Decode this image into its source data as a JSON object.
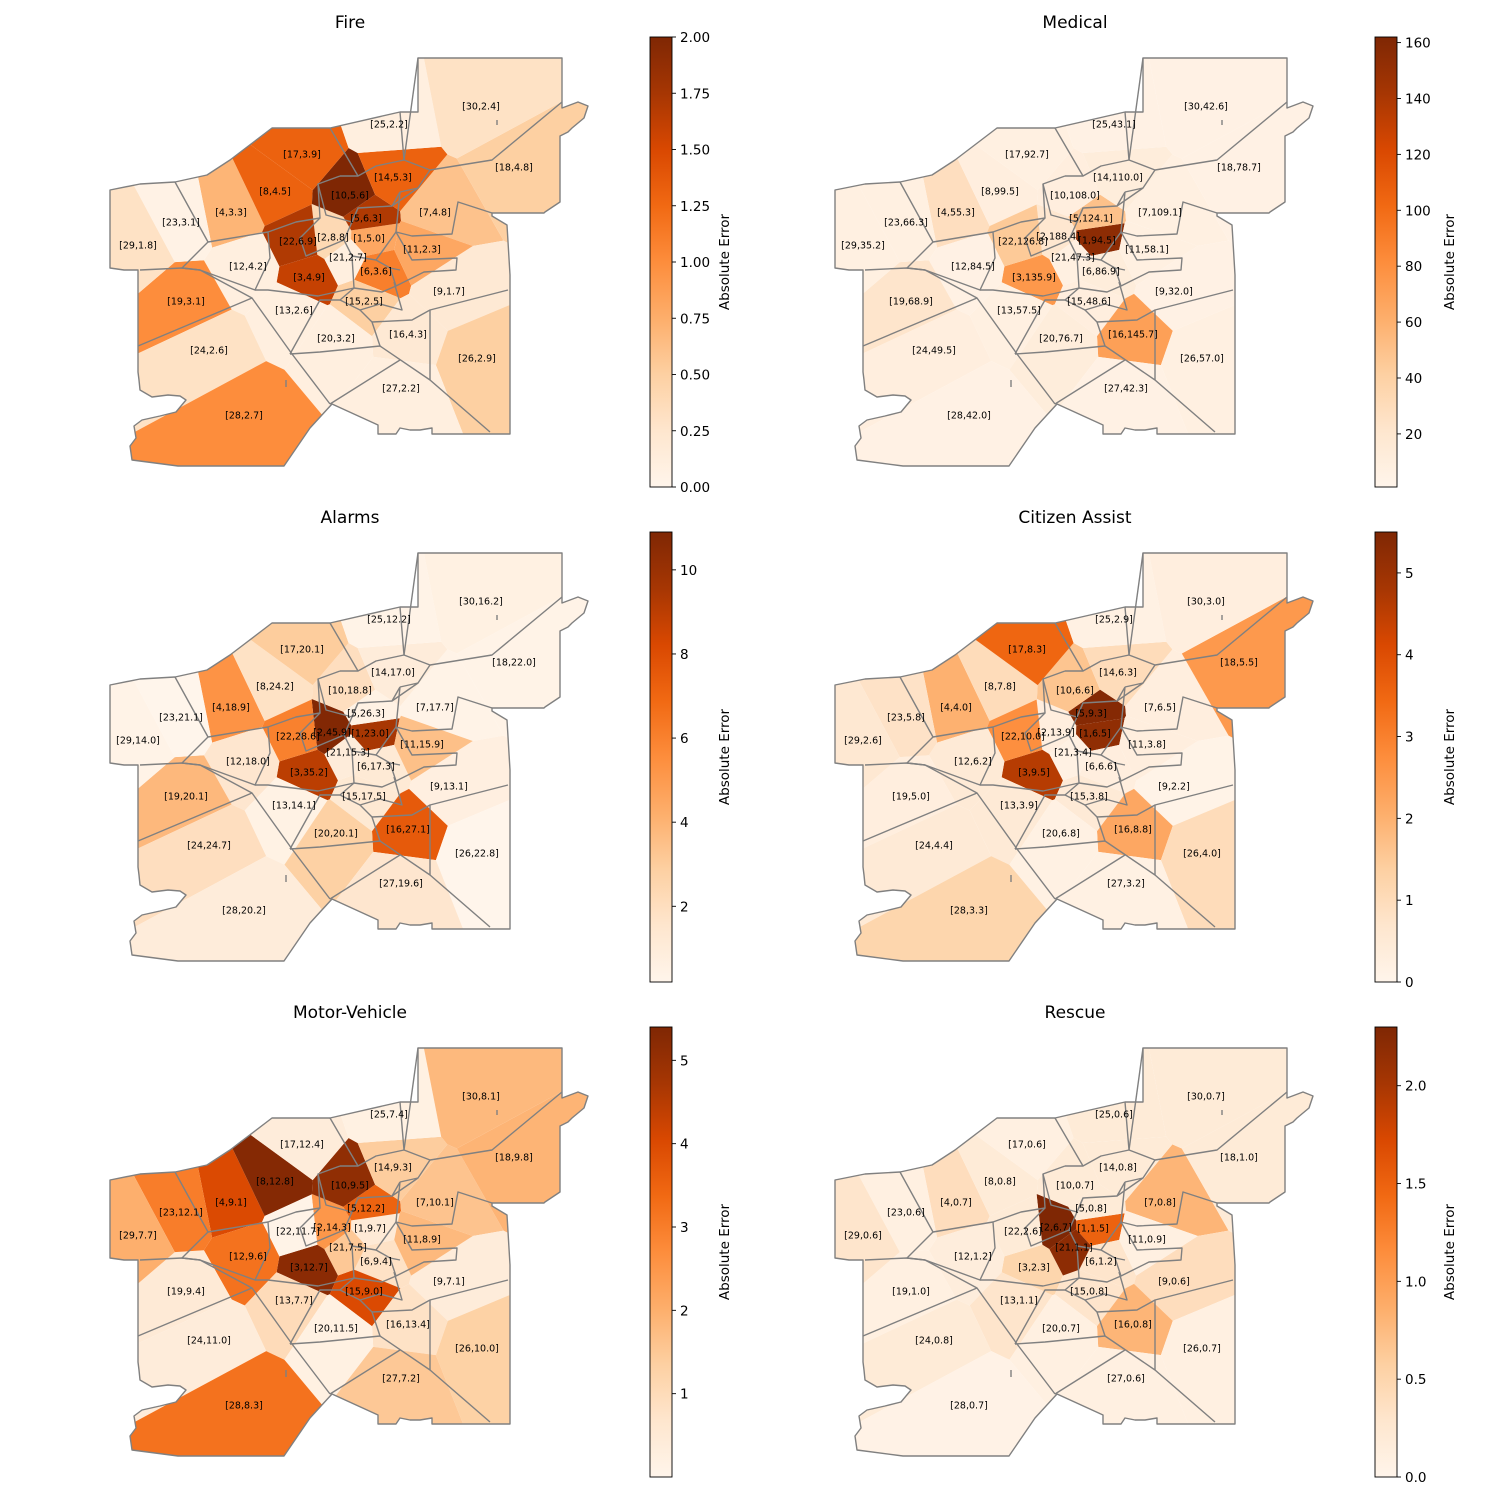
{
  "colormap": [
    "#fff5eb",
    "#fee6ce",
    "#fdd0a2",
    "#fdae6b",
    "#fd8d3c",
    "#f16913",
    "#d94801",
    "#a63603",
    "#7f2704"
  ],
  "edge_color": "#808080",
  "chart_data": [
    {
      "type": "choropleth-map",
      "title": "Fire",
      "colorbar_label": "Absolute Error",
      "vmin": 0,
      "vmax": 2.0,
      "ticks": [
        "0.00",
        "0.25",
        "0.50",
        "0.75",
        "1.00",
        "1.25",
        "1.50",
        "1.75",
        "2.00"
      ],
      "regions": [
        {
          "id": 1,
          "value": 5.0,
          "error": 0.8
        },
        {
          "id": 2,
          "value": 8.8,
          "error": 0.4
        },
        {
          "id": 3,
          "value": 4.9,
          "error": 1.6
        },
        {
          "id": 4,
          "value": 3.3,
          "error": 0.7
        },
        {
          "id": 5,
          "value": 6.3,
          "error": 1.7
        },
        {
          "id": 6,
          "value": 3.6,
          "error": 1.1
        },
        {
          "id": 7,
          "value": 4.8,
          "error": 0.6
        },
        {
          "id": 8,
          "value": 4.5,
          "error": 1.3
        },
        {
          "id": 9,
          "value": 1.7,
          "error": 0.2
        },
        {
          "id": 10,
          "value": 5.6,
          "error": 2.0
        },
        {
          "id": 11,
          "value": 2.3,
          "error": 0.8
        },
        {
          "id": 12,
          "value": 4.2,
          "error": 0.1
        },
        {
          "id": 13,
          "value": 2.6,
          "error": 0.1
        },
        {
          "id": 14,
          "value": 5.3,
          "error": 1.3
        },
        {
          "id": 15,
          "value": 2.5,
          "error": 0.5
        },
        {
          "id": 16,
          "value": 4.3,
          "error": 0.2
        },
        {
          "id": 17,
          "value": 3.9,
          "error": 1.3
        },
        {
          "id": 18,
          "value": 4.8,
          "error": 0.5
        },
        {
          "id": 19,
          "value": 3.1,
          "error": 1.0
        },
        {
          "id": 20,
          "value": 3.2,
          "error": 0.1
        },
        {
          "id": 21,
          "value": 2.7,
          "error": 0.1
        },
        {
          "id": 22,
          "value": 6.9,
          "error": 1.7
        },
        {
          "id": 23,
          "value": 3.1,
          "error": 0.05
        },
        {
          "id": 24,
          "value": 2.6,
          "error": 0.3
        },
        {
          "id": 25,
          "value": 2.2,
          "error": 0.1
        },
        {
          "id": 26,
          "value": 2.9,
          "error": 0.5
        },
        {
          "id": 27,
          "value": 2.2,
          "error": 0.1
        },
        {
          "id": 28,
          "value": 2.7,
          "error": 1.0
        },
        {
          "id": 29,
          "value": 1.8,
          "error": 0.3
        },
        {
          "id": 30,
          "value": 2.4,
          "error": 0.3
        }
      ]
    },
    {
      "type": "choropleth-map",
      "title": "Medical",
      "colorbar_label": "Absolute Error",
      "vmin": 1,
      "vmax": 162,
      "ticks": [
        "20",
        "40",
        "60",
        "80",
        "100",
        "120",
        "140",
        "160"
      ],
      "regions": [
        {
          "id": 1,
          "value": 94.5,
          "error": 155
        },
        {
          "id": 2,
          "value": 188.4,
          "error": 20
        },
        {
          "id": 3,
          "value": 135.9,
          "error": 75
        },
        {
          "id": 4,
          "value": 55.3,
          "error": 28
        },
        {
          "id": 5,
          "value": 124.1,
          "error": 50
        },
        {
          "id": 6,
          "value": 86.9,
          "error": 12
        },
        {
          "id": 7,
          "value": 109.1,
          "error": 8
        },
        {
          "id": 8,
          "value": 99.5,
          "error": 10
        },
        {
          "id": 9,
          "value": 32.0,
          "error": 6
        },
        {
          "id": 10,
          "value": 108.0,
          "error": 10
        },
        {
          "id": 11,
          "value": 58.1,
          "error": 8
        },
        {
          "id": 12,
          "value": 84.5,
          "error": 6
        },
        {
          "id": 13,
          "value": 57.5,
          "error": 8
        },
        {
          "id": 14,
          "value": 110.0,
          "error": 12
        },
        {
          "id": 15,
          "value": 48.6,
          "error": 10
        },
        {
          "id": 16,
          "value": 145.7,
          "error": 70
        },
        {
          "id": 17,
          "value": 92.7,
          "error": 8
        },
        {
          "id": 18,
          "value": 78.7,
          "error": 6
        },
        {
          "id": 19,
          "value": 68.9,
          "error": 22
        },
        {
          "id": 20,
          "value": 76.7,
          "error": 12
        },
        {
          "id": 21,
          "value": 47.3,
          "error": 8
        },
        {
          "id": 22,
          "value": 126.8,
          "error": 45
        },
        {
          "id": 23,
          "value": 66.3,
          "error": 8
        },
        {
          "id": 24,
          "value": 49.5,
          "error": 10
        },
        {
          "id": 25,
          "value": 43.1,
          "error": 6
        },
        {
          "id": 26,
          "value": 57.0,
          "error": 8
        },
        {
          "id": 27,
          "value": 42.3,
          "error": 6
        },
        {
          "id": 28,
          "value": 42.0,
          "error": 6
        },
        {
          "id": 29,
          "value": 35.2,
          "error": 8
        },
        {
          "id": 30,
          "value": 42.6,
          "error": 6
        }
      ]
    },
    {
      "type": "choropleth-map",
      "title": "Alarms",
      "colorbar_label": "Absolute Error",
      "vmin": 0.2,
      "vmax": 10.9,
      "ticks": [
        "2",
        "4",
        "6",
        "8",
        "10"
      ],
      "regions": [
        {
          "id": 1,
          "value": 23.0,
          "error": 9.5
        },
        {
          "id": 2,
          "value": 45.9,
          "error": 10.8
        },
        {
          "id": 3,
          "value": 35.2,
          "error": 9.0
        },
        {
          "id": 4,
          "value": 18.9,
          "error": 5.3
        },
        {
          "id": 5,
          "value": 26.3,
          "error": 0.5
        },
        {
          "id": 6,
          "value": 17.3,
          "error": 1.2
        },
        {
          "id": 7,
          "value": 17.7,
          "error": 0.4
        },
        {
          "id": 8,
          "value": 24.2,
          "error": 1.8
        },
        {
          "id": 9,
          "value": 13.1,
          "error": 0.7
        },
        {
          "id": 10,
          "value": 18.8,
          "error": 2.0
        },
        {
          "id": 11,
          "value": 15.9,
          "error": 3.5
        },
        {
          "id": 12,
          "value": 18.0,
          "error": 1.5
        },
        {
          "id": 13,
          "value": 14.1,
          "error": 0.5
        },
        {
          "id": 14,
          "value": 17.0,
          "error": 1.0
        },
        {
          "id": 15,
          "value": 17.5,
          "error": 1.3
        },
        {
          "id": 16,
          "value": 27.1,
          "error": 7.5
        },
        {
          "id": 17,
          "value": 20.1,
          "error": 3.0
        },
        {
          "id": 18,
          "value": 22.0,
          "error": 0.4
        },
        {
          "id": 19,
          "value": 20.1,
          "error": 3.8
        },
        {
          "id": 20,
          "value": 20.1,
          "error": 2.8
        },
        {
          "id": 21,
          "value": 15.3,
          "error": 1.0
        },
        {
          "id": 22,
          "value": 28.6,
          "error": 6.0
        },
        {
          "id": 23,
          "value": 21.1,
          "error": 0.2
        },
        {
          "id": 24,
          "value": 24.7,
          "error": 2.0
        },
        {
          "id": 25,
          "value": 12.2,
          "error": 0.4
        },
        {
          "id": 26,
          "value": 22.8,
          "error": 0.2
        },
        {
          "id": 27,
          "value": 19.6,
          "error": 1.5
        },
        {
          "id": 28,
          "value": 20.2,
          "error": 1.0
        },
        {
          "id": 29,
          "value": 14.0,
          "error": 0.4
        },
        {
          "id": 30,
          "value": 16.2,
          "error": 0.6
        }
      ]
    },
    {
      "type": "choropleth-map",
      "title": "Citizen Assist",
      "colorbar_label": "Absolute Error",
      "vmin": 0,
      "vmax": 5.5,
      "ticks": [
        "0",
        "1",
        "2",
        "3",
        "4",
        "5"
      ],
      "regions": [
        {
          "id": 1,
          "value": 6.5,
          "error": 5.2
        },
        {
          "id": 2,
          "value": 13.9,
          "error": 0.3
        },
        {
          "id": 3,
          "value": 9.5,
          "error": 4.6
        },
        {
          "id": 4,
          "value": 4.0,
          "error": 2.0
        },
        {
          "id": 5,
          "value": 9.3,
          "error": 5.4
        },
        {
          "id": 6,
          "value": 6.6,
          "error": 0.3
        },
        {
          "id": 7,
          "value": 6.5,
          "error": 0.3
        },
        {
          "id": 8,
          "value": 7.8,
          "error": 1.0
        },
        {
          "id": 9,
          "value": 2.2,
          "error": 0.1
        },
        {
          "id": 10,
          "value": 6.6,
          "error": 1.6
        },
        {
          "id": 11,
          "value": 3.8,
          "error": 0.3
        },
        {
          "id": 12,
          "value": 6.2,
          "error": 0.5
        },
        {
          "id": 13,
          "value": 3.9,
          "error": 0.5
        },
        {
          "id": 14,
          "value": 6.3,
          "error": 1.0
        },
        {
          "id": 15,
          "value": 3.8,
          "error": 0.5
        },
        {
          "id": 16,
          "value": 8.8,
          "error": 2.2
        },
        {
          "id": 17,
          "value": 8.3,
          "error": 3.5
        },
        {
          "id": 18,
          "value": 5.5,
          "error": 2.5
        },
        {
          "id": 19,
          "value": 5.0,
          "error": 0.3
        },
        {
          "id": 20,
          "value": 6.8,
          "error": 0.2
        },
        {
          "id": 21,
          "value": 3.4,
          "error": 0.2
        },
        {
          "id": 22,
          "value": 10.0,
          "error": 2.7
        },
        {
          "id": 23,
          "value": 5.8,
          "error": 0.8
        },
        {
          "id": 24,
          "value": 4.4,
          "error": 0.5
        },
        {
          "id": 25,
          "value": 2.9,
          "error": 0.2
        },
        {
          "id": 26,
          "value": 4.0,
          "error": 1.0
        },
        {
          "id": 27,
          "value": 3.2,
          "error": 0.2
        },
        {
          "id": 28,
          "value": 3.3,
          "error": 1.2
        },
        {
          "id": 29,
          "value": 2.6,
          "error": 0.6
        },
        {
          "id": 30,
          "value": 3.0,
          "error": 0.3
        }
      ]
    },
    {
      "type": "choropleth-map",
      "title": "Motor-Vehicle",
      "colorbar_label": "Absolute Error",
      "vmin": 0,
      "vmax": 5.4,
      "ticks": [
        "1",
        "2",
        "3",
        "4",
        "5"
      ],
      "regions": [
        {
          "id": 1,
          "value": 9.7,
          "error": 0.5
        },
        {
          "id": 2,
          "value": 14.3,
          "error": 2.5
        },
        {
          "id": 3,
          "value": 12.7,
          "error": 5.2
        },
        {
          "id": 4,
          "value": 9.1,
          "error": 4.0
        },
        {
          "id": 5,
          "value": 12.2,
          "error": 3.5
        },
        {
          "id": 6,
          "value": 9.4,
          "error": 0.8
        },
        {
          "id": 7,
          "value": 10.1,
          "error": 1.6
        },
        {
          "id": 8,
          "value": 12.8,
          "error": 5.3
        },
        {
          "id": 9,
          "value": 7.1,
          "error": 0.4
        },
        {
          "id": 10,
          "value": 9.5,
          "error": 5.1
        },
        {
          "id": 11,
          "value": 8.9,
          "error": 1.8
        },
        {
          "id": 12,
          "value": 9.6,
          "error": 3.2
        },
        {
          "id": 13,
          "value": 7.7,
          "error": 1.0
        },
        {
          "id": 14,
          "value": 9.3,
          "error": 1.4
        },
        {
          "id": 15,
          "value": 9.0,
          "error": 4.0
        },
        {
          "id": 16,
          "value": 13.4,
          "error": 0.8
        },
        {
          "id": 17,
          "value": 12.4,
          "error": 0.4
        },
        {
          "id": 18,
          "value": 9.8,
          "error": 1.9
        },
        {
          "id": 19,
          "value": 9.4,
          "error": 0.5
        },
        {
          "id": 20,
          "value": 11.5,
          "error": 0.2
        },
        {
          "id": 21,
          "value": 7.5,
          "error": 1.5
        },
        {
          "id": 22,
          "value": 11.7,
          "error": 0.1
        },
        {
          "id": 23,
          "value": 12.1,
          "error": 3.0
        },
        {
          "id": 24,
          "value": 11.0,
          "error": 0.4
        },
        {
          "id": 25,
          "value": 7.4,
          "error": 0.2
        },
        {
          "id": 26,
          "value": 10.0,
          "error": 1.3
        },
        {
          "id": 27,
          "value": 7.2,
          "error": 1.5
        },
        {
          "id": 28,
          "value": 8.3,
          "error": 3.2
        },
        {
          "id": 29,
          "value": 7.7,
          "error": 2.0
        },
        {
          "id": 30,
          "value": 8.1,
          "error": 1.8
        }
      ]
    },
    {
      "type": "choropleth-map",
      "title": "Rescue",
      "colorbar_label": "Absolute Error",
      "vmin": 0,
      "vmax": 2.3,
      "ticks": [
        "0.0",
        "0.5",
        "1.0",
        "1.5",
        "2.0"
      ],
      "regions": [
        {
          "id": 1,
          "value": 1.5,
          "error": 1.5
        },
        {
          "id": 2,
          "value": 6.7,
          "error": 2.3
        },
        {
          "id": 3,
          "value": 2.3,
          "error": 0.5
        },
        {
          "id": 4,
          "value": 0.7,
          "error": 0.4
        },
        {
          "id": 5,
          "value": 0.8,
          "error": 0.2
        },
        {
          "id": 6,
          "value": 1.2,
          "error": 0.3
        },
        {
          "id": 7,
          "value": 0.8,
          "error": 0.8
        },
        {
          "id": 8,
          "value": 0.8,
          "error": 0.2
        },
        {
          "id": 9,
          "value": 0.6,
          "error": 0.4
        },
        {
          "id": 10,
          "value": 0.7,
          "error": 0.2
        },
        {
          "id": 11,
          "value": 0.9,
          "error": 0.1
        },
        {
          "id": 12,
          "value": 1.2,
          "error": 0.15
        },
        {
          "id": 13,
          "value": 1.1,
          "error": 0.3
        },
        {
          "id": 14,
          "value": 0.8,
          "error": 0.2
        },
        {
          "id": 15,
          "value": 0.8,
          "error": 0.3
        },
        {
          "id": 16,
          "value": 0.8,
          "error": 0.8
        },
        {
          "id": 17,
          "value": 0.6,
          "error": 0.1
        },
        {
          "id": 18,
          "value": 1.0,
          "error": 0.2
        },
        {
          "id": 19,
          "value": 1.0,
          "error": 0.1
        },
        {
          "id": 20,
          "value": 0.7,
          "error": 0.1
        },
        {
          "id": 21,
          "value": 1.1,
          "error": 2.2
        },
        {
          "id": 22,
          "value": 2.6,
          "error": 0.2
        },
        {
          "id": 23,
          "value": 0.6,
          "error": 0.1
        },
        {
          "id": 24,
          "value": 0.8,
          "error": 0.2
        },
        {
          "id": 25,
          "value": 0.6,
          "error": 0.2
        },
        {
          "id": 26,
          "value": 0.7,
          "error": 0.1
        },
        {
          "id": 27,
          "value": 0.6,
          "error": 0.1
        },
        {
          "id": 28,
          "value": 0.7,
          "error": 0.05
        },
        {
          "id": 29,
          "value": 0.6,
          "error": 0.3
        },
        {
          "id": 30,
          "value": 0.7,
          "error": 0.2
        }
      ]
    }
  ]
}
